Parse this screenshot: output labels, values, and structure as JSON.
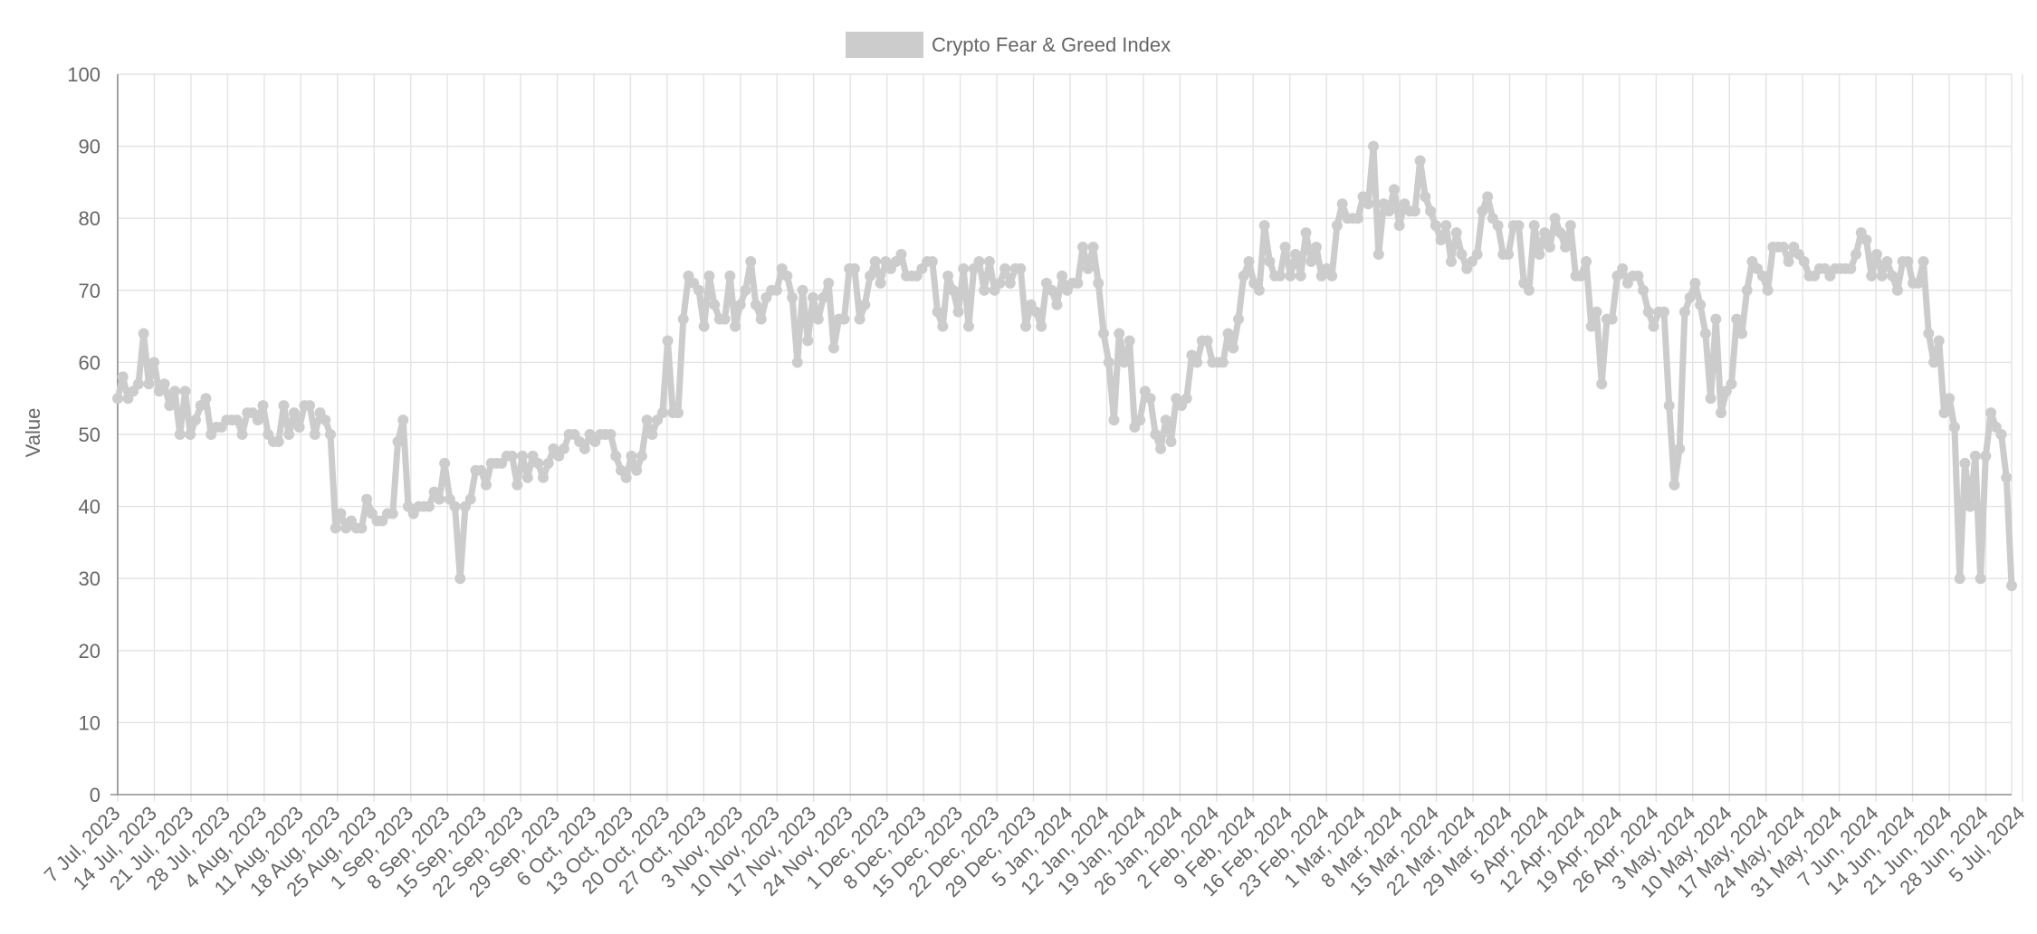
{
  "chart_data": {
    "type": "line",
    "title": "",
    "legend": {
      "position": "top",
      "label": "Crypto Fear & Greed Index"
    },
    "xlabel": "",
    "ylabel": "Value",
    "ylim": [
      0,
      100
    ],
    "yticks": [
      0,
      10,
      20,
      30,
      40,
      50,
      60,
      70,
      80,
      90,
      100
    ],
    "grid": true,
    "colors": {
      "series": "#cccccc",
      "grid": "#e3e3e3",
      "axis": "#8e8e8e",
      "text": "#666666"
    },
    "x_tick_labels": [
      "7 Jul, 2023",
      "14 Jul, 2023",
      "21 Jul, 2023",
      "28 Jul, 2023",
      "4 Aug, 2023",
      "11 Aug, 2023",
      "18 Aug, 2023",
      "25 Aug, 2023",
      "1 Sep, 2023",
      "8 Sep, 2023",
      "15 Sep, 2023",
      "22 Sep, 2023",
      "29 Sep, 2023",
      "6 Oct, 2023",
      "13 Oct, 2023",
      "20 Oct, 2023",
      "27 Oct, 2023",
      "3 Nov, 2023",
      "10 Nov, 2023",
      "17 Nov, 2023",
      "24 Nov, 2023",
      "1 Dec, 2023",
      "8 Dec, 2023",
      "15 Dec, 2023",
      "22 Dec, 2023",
      "29 Dec, 2023",
      "5 Jan, 2024",
      "12 Jan, 2024",
      "19 Jan, 2024",
      "26 Jan, 2024",
      "2 Feb, 2024",
      "9 Feb, 2024",
      "16 Feb, 2024",
      "23 Feb, 2024",
      "1 Mar, 2024",
      "8 Mar, 2024",
      "15 Mar, 2024",
      "22 Mar, 2024",
      "29 Mar, 2024",
      "5 Apr, 2024",
      "12 Apr, 2024",
      "19 Apr, 2024",
      "26 Apr, 2024",
      "3 May, 2024",
      "10 May, 2024",
      "17 May, 2024",
      "24 May, 2024",
      "31 May, 2024",
      "7 Jun, 2024",
      "14 Jun, 2024",
      "21 Jun, 2024",
      "28 Jun, 2024",
      "5 Jul, 2024"
    ],
    "x_start": "7 Jul, 2023",
    "x_end": "5 Jul, 2024",
    "series": [
      {
        "name": "Crypto Fear & Greed Index",
        "values": [
          55,
          58,
          55,
          56,
          57,
          64,
          57,
          60,
          56,
          57,
          54,
          56,
          50,
          56,
          50,
          52,
          54,
          55,
          50,
          51,
          51,
          52,
          52,
          52,
          50,
          53,
          53,
          52,
          54,
          50,
          49,
          49,
          54,
          50,
          53,
          51,
          54,
          54,
          50,
          53,
          52,
          50,
          37,
          39,
          37,
          38,
          37,
          37,
          41,
          39,
          38,
          38,
          39,
          39,
          49,
          52,
          40,
          39,
          40,
          40,
          40,
          42,
          41,
          46,
          41,
          40,
          30,
          40,
          41,
          45,
          45,
          43,
          46,
          46,
          46,
          47,
          47,
          43,
          47,
          44,
          47,
          46,
          44,
          46,
          48,
          47,
          48,
          50,
          50,
          49,
          48,
          50,
          49,
          50,
          50,
          50,
          47,
          45,
          44,
          47,
          45,
          47,
          52,
          50,
          52,
          53,
          63,
          53,
          53,
          66,
          72,
          71,
          70,
          65,
          72,
          68,
          66,
          66,
          72,
          65,
          68,
          70,
          74,
          68,
          66,
          69,
          70,
          70,
          73,
          72,
          69,
          60,
          70,
          63,
          69,
          66,
          69,
          71,
          62,
          66,
          66,
          73,
          73,
          66,
          68,
          72,
          74,
          71,
          74,
          73,
          74,
          75,
          72,
          72,
          72,
          73,
          74,
          74,
          67,
          65,
          72,
          70,
          67,
          73,
          65,
          73,
          74,
          70,
          74,
          70,
          71,
          73,
          71,
          73,
          73,
          65,
          68,
          67,
          65,
          71,
          70,
          68,
          72,
          70,
          71,
          71,
          76,
          73,
          76,
          71,
          64,
          60,
          52,
          64,
          60,
          63,
          51,
          52,
          56,
          55,
          50,
          48,
          52,
          49,
          55,
          54,
          55,
          61,
          60,
          63,
          63,
          60,
          60,
          60,
          64,
          62,
          66,
          72,
          74,
          71,
          70,
          79,
          74,
          72,
          72,
          76,
          72,
          75,
          72,
          78,
          74,
          76,
          72,
          73,
          72,
          79,
          82,
          80,
          80,
          80,
          83,
          82,
          90,
          75,
          82,
          81,
          84,
          79,
          82,
          81,
          81,
          88,
          83,
          81,
          79,
          77,
          79,
          74,
          78,
          75,
          73,
          74,
          75,
          81,
          83,
          80,
          79,
          75,
          75,
          79,
          79,
          71,
          70,
          79,
          75,
          78,
          76,
          80,
          78,
          76,
          79,
          72,
          72,
          74,
          65,
          67,
          57,
          66,
          66,
          72,
          73,
          71,
          72,
          72,
          70,
          67,
          65,
          67,
          67,
          54,
          43,
          48,
          67,
          69,
          71,
          68,
          64,
          55,
          66,
          53,
          56,
          57,
          66,
          64,
          70,
          74,
          73,
          72,
          70,
          76,
          76,
          76,
          74,
          76,
          75,
          74,
          72,
          72,
          73,
          73,
          72,
          73,
          73,
          73,
          73,
          75,
          78,
          77,
          72,
          75,
          72,
          74,
          72,
          70,
          74,
          74,
          71,
          71,
          74,
          64,
          60,
          63,
          53,
          55,
          51,
          30,
          46,
          40,
          47,
          30,
          47,
          53,
          51,
          50,
          44,
          29
        ]
      }
    ]
  }
}
